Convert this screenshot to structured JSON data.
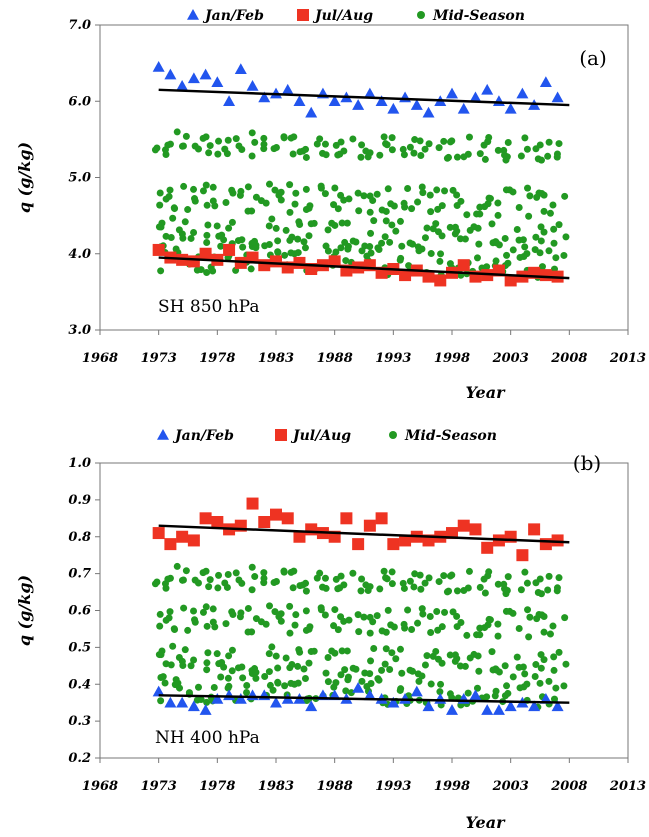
{
  "colors": {
    "jan_feb": "#2255ee",
    "jul_aug": "#ee3322",
    "mid_season": "#229922",
    "trend": "#000000"
  },
  "chart_data": [
    {
      "type": "scatter",
      "panel_label": "(a)",
      "inset_label": "SH 850 hPa",
      "xlabel": "Year",
      "ylabel": "q (g/kg)",
      "xlim": [
        1968,
        2013
      ],
      "ylim": [
        3.0,
        7.0
      ],
      "xticks": [
        "1968",
        "1973",
        "1978",
        "1983",
        "1988",
        "1993",
        "1998",
        "2003",
        "2008",
        "2013"
      ],
      "yticks": [
        "3.0",
        "4.0",
        "5.0",
        "6.0",
        "7.0"
      ],
      "legend": [
        "Jan/Feb",
        "Jul/Aug",
        "Mid-Season"
      ],
      "legend_position": "top",
      "series": [
        {
          "name": "Jan/Feb",
          "marker": "triangle",
          "color_key": "jan_feb",
          "x": [
            1973,
            1974,
            1975,
            1976,
            1977,
            1978,
            1979,
            1980,
            1981,
            1982,
            1983,
            1984,
            1985,
            1986,
            1987,
            1988,
            1989,
            1990,
            1991,
            1992,
            1993,
            1994,
            1995,
            1996,
            1997,
            1998,
            1999,
            2000,
            2001,
            2002,
            2003,
            2004,
            2005,
            2006,
            2007
          ],
          "y": [
            6.45,
            6.35,
            6.2,
            6.3,
            6.35,
            6.25,
            6.0,
            6.42,
            6.2,
            6.05,
            6.1,
            6.15,
            6.0,
            5.85,
            6.1,
            6.0,
            6.05,
            5.95,
            6.1,
            6.0,
            5.9,
            6.05,
            5.95,
            5.85,
            6.0,
            6.1,
            5.9,
            6.05,
            6.15,
            6.0,
            5.9,
            6.1,
            5.95,
            6.25,
            6.05
          ]
        },
        {
          "name": "Jul/Aug",
          "marker": "square",
          "color_key": "jul_aug",
          "x": [
            1973,
            1974,
            1975,
            1976,
            1977,
            1978,
            1979,
            1980,
            1981,
            1982,
            1983,
            1984,
            1985,
            1986,
            1987,
            1988,
            1989,
            1990,
            1991,
            1992,
            1993,
            1994,
            1995,
            1996,
            1997,
            1998,
            1999,
            2000,
            2001,
            2002,
            2003,
            2004,
            2005,
            2006,
            2007
          ],
          "y": [
            4.05,
            3.95,
            3.92,
            3.9,
            4.0,
            3.92,
            4.05,
            3.88,
            3.95,
            3.85,
            3.9,
            3.82,
            3.88,
            3.8,
            3.85,
            3.9,
            3.78,
            3.82,
            3.85,
            3.75,
            3.8,
            3.72,
            3.78,
            3.7,
            3.65,
            3.75,
            3.85,
            3.7,
            3.72,
            3.78,
            3.65,
            3.7,
            3.75,
            3.72,
            3.7
          ]
        },
        {
          "name": "Mid-Season",
          "marker": "circle",
          "color_key": "mid_season",
          "band_means": [
            5.45,
            4.75,
            4.3,
            3.95
          ]
        }
      ],
      "trend_lines": [
        {
          "series": "Jan/Feb",
          "x": [
            1973,
            2008
          ],
          "y": [
            6.15,
            5.95
          ]
        },
        {
          "series": "Jul/Aug",
          "x": [
            1973,
            2008
          ],
          "y": [
            3.95,
            3.68
          ]
        }
      ]
    },
    {
      "type": "scatter",
      "panel_label": "(b)",
      "inset_label": "NH 400 hPa",
      "xlabel": "Year",
      "ylabel": "q (g/kg)",
      "xlim": [
        1968,
        2013
      ],
      "ylim": [
        0.2,
        1.0
      ],
      "xticks": [
        "1968",
        "1973",
        "1978",
        "1983",
        "1988",
        "1993",
        "1998",
        "2003",
        "2008",
        "2013"
      ],
      "yticks": [
        "0.2",
        "0.3",
        "0.4",
        "0.5",
        "0.6",
        "0.7",
        "0.8",
        "0.9",
        "1.0"
      ],
      "legend": [
        "Jan/Feb",
        "Jul/Aug",
        "Mid-Season"
      ],
      "legend_position": "top",
      "series": [
        {
          "name": "Jan/Feb",
          "marker": "triangle",
          "color_key": "jan_feb",
          "x": [
            1973,
            1974,
            1975,
            1976,
            1977,
            1978,
            1979,
            1980,
            1981,
            1982,
            1983,
            1984,
            1985,
            1986,
            1987,
            1988,
            1989,
            1990,
            1991,
            1992,
            1993,
            1994,
            1995,
            1996,
            1997,
            1998,
            1999,
            2000,
            2001,
            2002,
            2003,
            2004,
            2005,
            2006,
            2007
          ],
          "y": [
            0.38,
            0.35,
            0.35,
            0.34,
            0.33,
            0.36,
            0.37,
            0.36,
            0.37,
            0.37,
            0.35,
            0.36,
            0.36,
            0.34,
            0.37,
            0.37,
            0.36,
            0.39,
            0.37,
            0.36,
            0.35,
            0.36,
            0.38,
            0.34,
            0.36,
            0.33,
            0.36,
            0.37,
            0.33,
            0.33,
            0.34,
            0.35,
            0.34,
            0.36,
            0.34
          ]
        },
        {
          "name": "Jul/Aug",
          "marker": "square",
          "color_key": "jul_aug",
          "x": [
            1973,
            1974,
            1975,
            1976,
            1977,
            1978,
            1979,
            1980,
            1981,
            1982,
            1983,
            1984,
            1985,
            1986,
            1987,
            1988,
            1989,
            1990,
            1991,
            1992,
            1993,
            1994,
            1995,
            1996,
            1997,
            1998,
            1999,
            2000,
            2001,
            2002,
            2003,
            2004,
            2005,
            2006,
            2007
          ],
          "y": [
            0.81,
            0.78,
            0.8,
            0.79,
            0.85,
            0.84,
            0.82,
            0.83,
            0.89,
            0.84,
            0.86,
            0.85,
            0.8,
            0.82,
            0.81,
            0.8,
            0.85,
            0.78,
            0.83,
            0.85,
            0.78,
            0.79,
            0.8,
            0.79,
            0.8,
            0.81,
            0.83,
            0.82,
            0.77,
            0.79,
            0.8,
            0.75,
            0.82,
            0.78,
            0.79
          ]
        },
        {
          "name": "Mid-Season",
          "marker": "circle",
          "color_key": "mid_season",
          "band_means": [
            0.69,
            0.58,
            0.47,
            0.39
          ]
        }
      ],
      "trend_lines": [
        {
          "series": "Jan/Feb",
          "x": [
            1973,
            2008
          ],
          "y": [
            0.37,
            0.35
          ]
        },
        {
          "series": "Jul/Aug",
          "x": [
            1973,
            2008
          ],
          "y": [
            0.83,
            0.785
          ]
        }
      ]
    }
  ]
}
